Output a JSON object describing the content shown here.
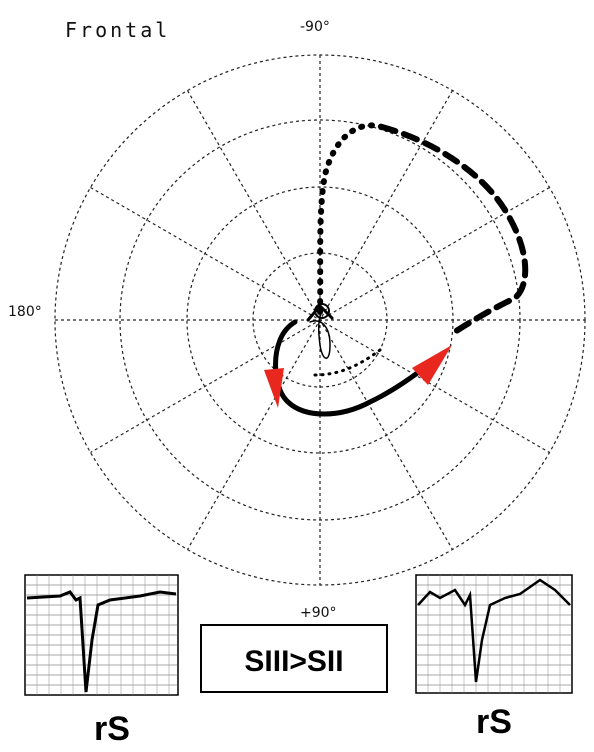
{
  "title": "Frontal",
  "axis_labels": {
    "top": "-90°",
    "left": "180°",
    "bottom": "+90°"
  },
  "box_label": "SIII>SII",
  "leads": [
    {
      "label": "rS"
    },
    {
      "label": "rS"
    }
  ]
}
